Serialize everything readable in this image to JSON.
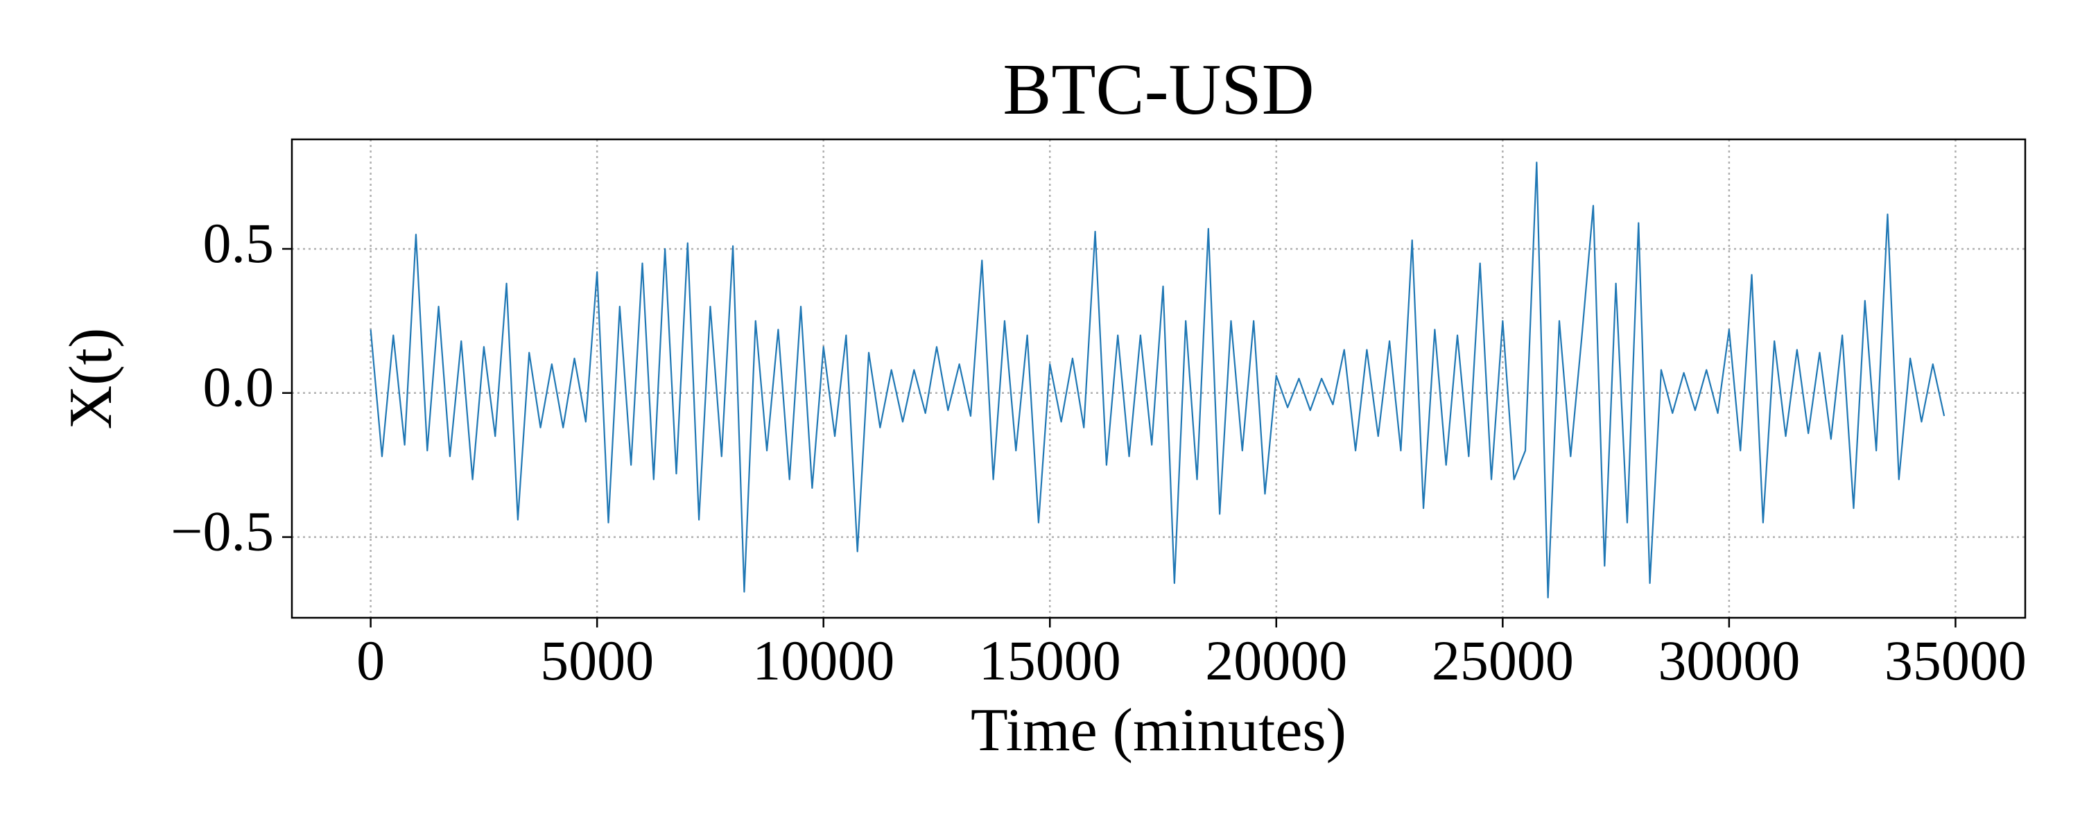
{
  "chart_data": {
    "type": "line",
    "title": "BTC-USD",
    "x_label": "Time (minutes)",
    "y_label": "X(t)",
    "color": "#1f77b4",
    "grid": true,
    "xlim": [
      -1740,
      36540
    ],
    "ylim": [
      -0.78,
      0.88
    ],
    "xticks": [
      0,
      5000,
      10000,
      15000,
      20000,
      25000,
      30000,
      35000
    ],
    "yticks": [
      {
        "value": -0.5,
        "label": "−0.5"
      },
      {
        "value": 0,
        "label": "0.0"
      },
      0.5
    ],
    "x": [
      0,
      250,
      500,
      750,
      1000,
      1250,
      1500,
      1750,
      2000,
      2250,
      2500,
      2750,
      3000,
      3250,
      3500,
      3750,
      4000,
      4250,
      4500,
      4750,
      5000,
      5250,
      5500,
      5750,
      6000,
      6250,
      6500,
      6750,
      7000,
      7250,
      7500,
      7750,
      8000,
      8250,
      8500,
      8750,
      9000,
      9250,
      9500,
      9750,
      10000,
      10250,
      10500,
      10750,
      11000,
      11250,
      11500,
      11750,
      12000,
      12250,
      12500,
      12750,
      13000,
      13250,
      13500,
      13750,
      14000,
      14250,
      14500,
      14750,
      15000,
      15250,
      15500,
      15750,
      16000,
      16250,
      16500,
      16750,
      17000,
      17250,
      17500,
      17750,
      18000,
      18250,
      18500,
      18750,
      19000,
      19250,
      19500,
      19750,
      20000,
      20250,
      20500,
      20750,
      21000,
      21250,
      21500,
      21750,
      22000,
      22250,
      22500,
      22750,
      23000,
      23250,
      23500,
      23750,
      24000,
      24250,
      24500,
      24750,
      25000,
      25250,
      25500,
      25750,
      26000,
      26250,
      26500,
      26750,
      27000,
      27250,
      27500,
      27750,
      28000,
      28250,
      28500,
      28750,
      29000,
      29250,
      29500,
      29750,
      30000,
      30250,
      30500,
      30750,
      31000,
      31250,
      31500,
      31750,
      32000,
      32250,
      32500,
      32750,
      33000,
      33250,
      33500,
      33750,
      34000,
      34250,
      34500,
      34750
    ],
    "values": [
      0.22,
      -0.22,
      0.2,
      -0.18,
      0.55,
      -0.2,
      0.3,
      -0.22,
      0.18,
      -0.3,
      0.16,
      -0.15,
      0.38,
      -0.44,
      0.14,
      -0.12,
      0.1,
      -0.12,
      0.12,
      -0.1,
      0.42,
      -0.45,
      0.3,
      -0.25,
      0.45,
      -0.3,
      0.5,
      -0.28,
      0.52,
      -0.44,
      0.3,
      -0.22,
      0.51,
      -0.69,
      0.25,
      -0.2,
      0.22,
      -0.3,
      0.3,
      -0.33,
      0.16,
      -0.15,
      0.2,
      -0.55,
      0.14,
      -0.12,
      0.08,
      -0.1,
      0.08,
      -0.07,
      0.16,
      -0.06,
      0.1,
      -0.08,
      0.46,
      -0.3,
      0.25,
      -0.2,
      0.2,
      -0.45,
      0.1,
      -0.1,
      0.12,
      -0.12,
      0.56,
      -0.25,
      0.2,
      -0.22,
      0.2,
      -0.18,
      0.37,
      -0.66,
      0.25,
      -0.3,
      0.57,
      -0.42,
      0.25,
      -0.2,
      0.25,
      -0.35,
      0.06,
      -0.05,
      0.05,
      -0.06,
      0.05,
      -0.04,
      0.15,
      -0.2,
      0.15,
      -0.15,
      0.18,
      -0.2,
      0.53,
      -0.4,
      0.22,
      -0.25,
      0.2,
      -0.22,
      0.45,
      -0.3,
      0.25,
      -0.3,
      -0.2,
      0.8,
      -0.71,
      0.25,
      -0.22,
      0.2,
      0.65,
      -0.6,
      0.38,
      -0.45,
      0.59,
      -0.66,
      0.08,
      -0.07,
      0.07,
      -0.06,
      0.08,
      -0.07,
      0.22,
      -0.2,
      0.41,
      -0.45,
      0.18,
      -0.15,
      0.15,
      -0.14,
      0.14,
      -0.16,
      0.2,
      -0.4,
      0.32,
      -0.2,
      0.62,
      -0.3,
      0.12,
      -0.1,
      0.1,
      -0.08
    ]
  }
}
